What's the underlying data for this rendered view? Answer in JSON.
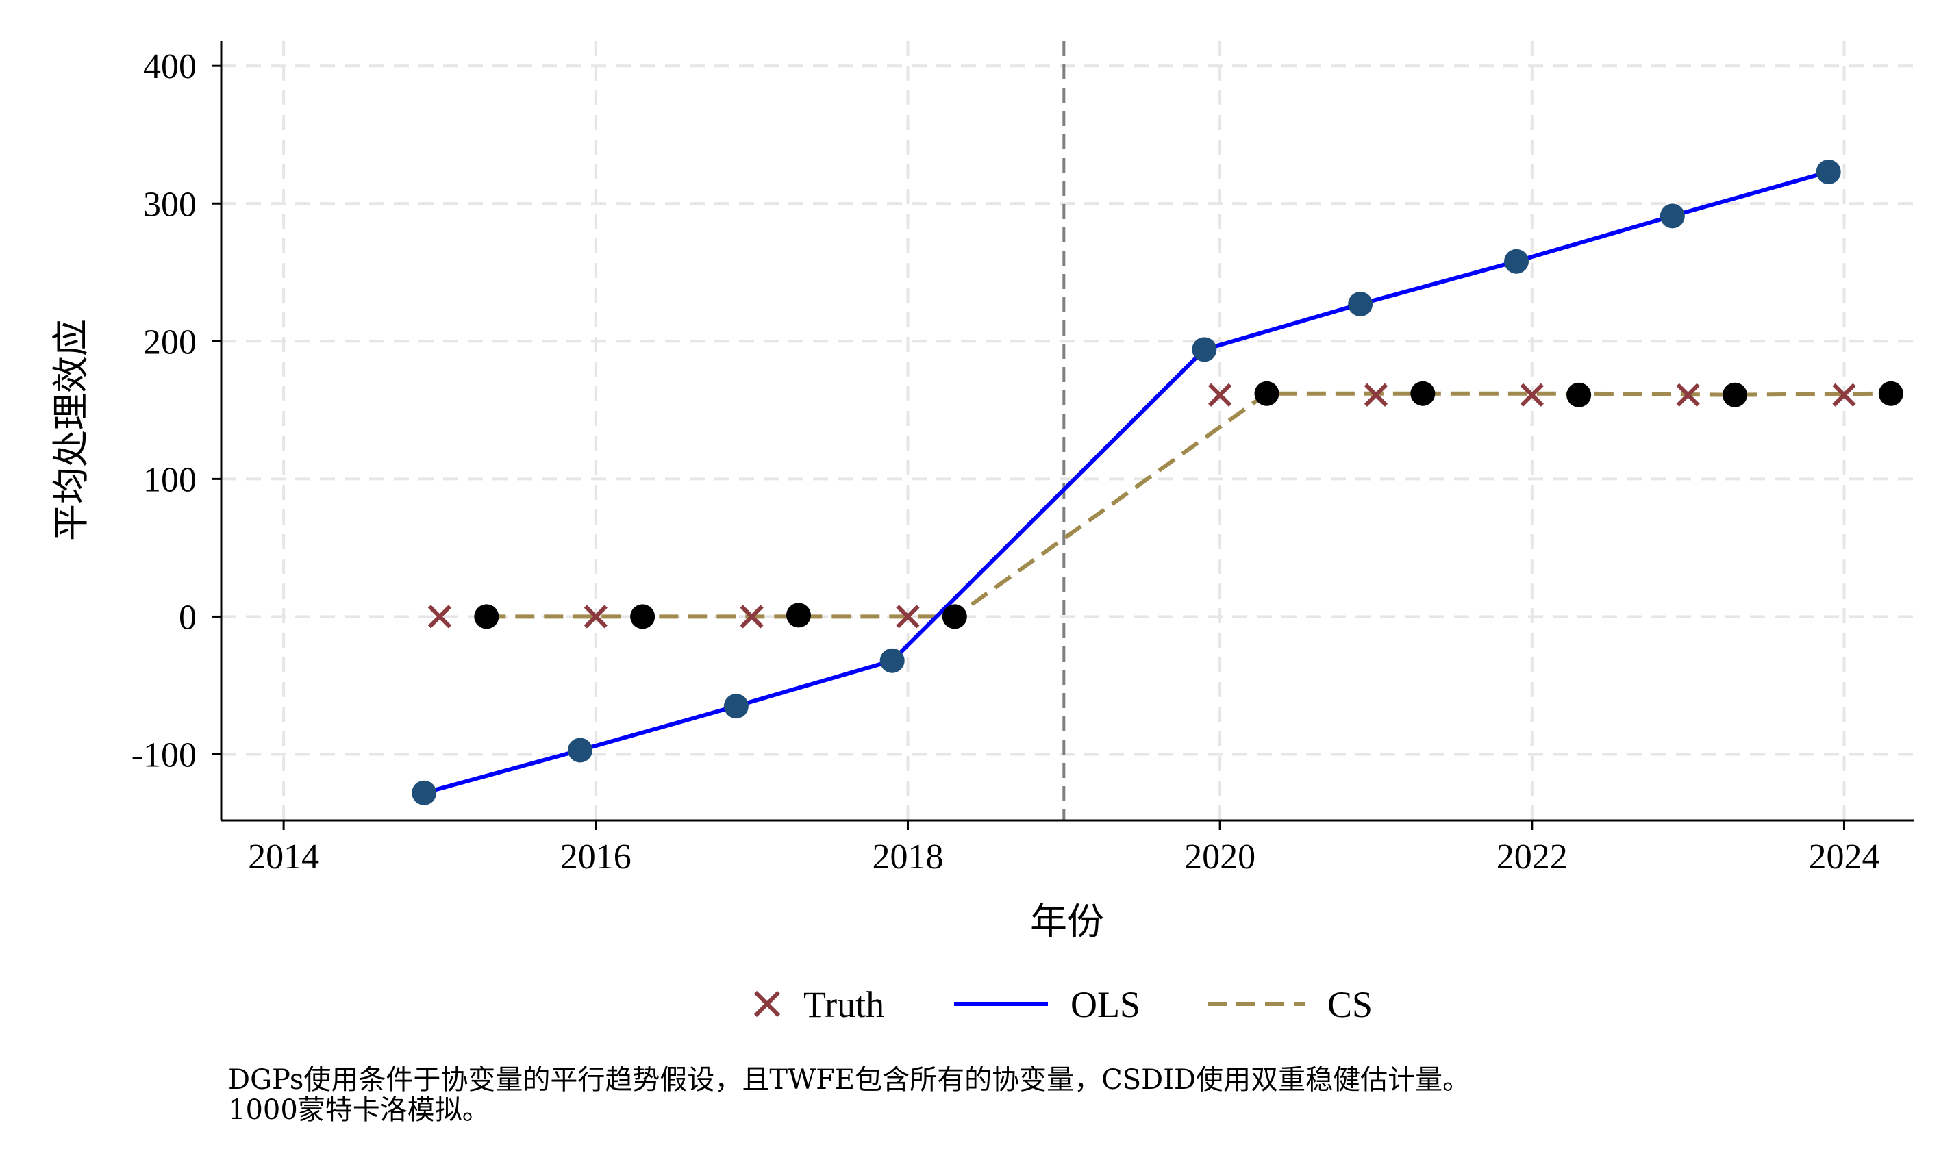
{
  "chart_data": {
    "type": "line",
    "title": "",
    "xlabel": "年份",
    "ylabel": "平均处理效应",
    "xlim": [
      2013.6,
      2024.45
    ],
    "ylim": [
      -148,
      418
    ],
    "xticks": [
      2014,
      2016,
      2018,
      2020,
      2022,
      2024
    ],
    "xtick_labels": [
      "2014",
      "2016",
      "2018",
      "2020",
      "2022",
      "2024"
    ],
    "yticks": [
      -100,
      0,
      100,
      200,
      300,
      400
    ],
    "ytick_labels": [
      "-100",
      "0",
      "100",
      "200",
      "300",
      "400"
    ],
    "grid": true,
    "treatment_line_x": 2019,
    "series": [
      {
        "name": "Truth",
        "style": "x-marker",
        "color": "#8b3a3f",
        "x": [
          2015,
          2016,
          2017,
          2018,
          2020,
          2021,
          2022,
          2023,
          2024
        ],
        "y": [
          0,
          0,
          0,
          0,
          161,
          161,
          161,
          161,
          161
        ]
      },
      {
        "name": "OLS",
        "style": "solid-line-with-points",
        "color": "#0000ff",
        "point_color": "#1f4e79",
        "x": [
          2014.9,
          2015.9,
          2016.9,
          2017.9,
          2019.9,
          2020.9,
          2021.9,
          2022.9,
          2023.9
        ],
        "y": [
          -128,
          -97,
          -65,
          -32,
          194,
          227,
          258,
          291,
          323
        ]
      },
      {
        "name": "CS",
        "style": "dashed-line-with-points",
        "color": "#a08a4e",
        "point_color": "#000000",
        "x": [
          2015.3,
          2016.3,
          2017.3,
          2018.3,
          2020.3,
          2021.3,
          2022.3,
          2023.3,
          2024.3
        ],
        "y": [
          0,
          0,
          1,
          0,
          162,
          162,
          161,
          161,
          162
        ],
        "line_y_at_markers": [
          0,
          0,
          0,
          0,
          162,
          162,
          162,
          161,
          162
        ]
      }
    ],
    "legend": {
      "placement": "bottom",
      "entries": [
        "Truth",
        "OLS",
        "CS"
      ]
    },
    "notes": [
      "DGPs使用条件于协变量的平行趋势假设，且TWFE包含所有的协变量，CSDID使用双重稳健估计量。",
      "1000蒙特卡洛模拟。"
    ]
  }
}
